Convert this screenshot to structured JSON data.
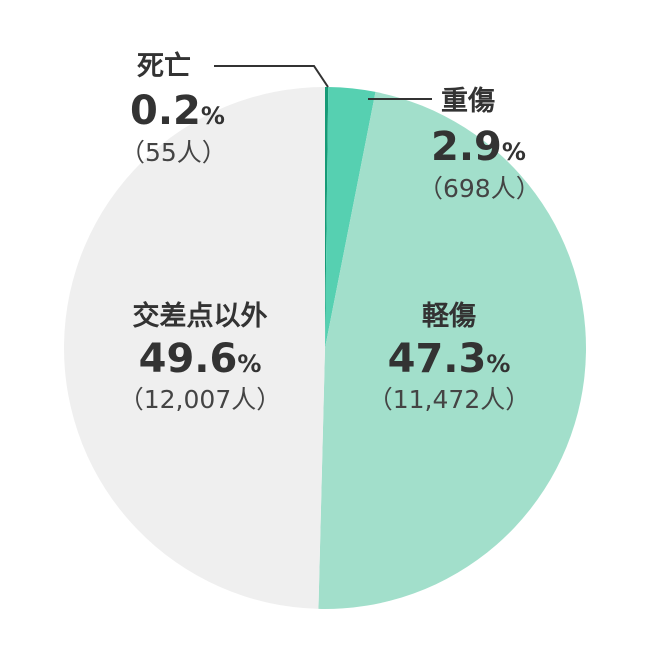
{
  "chart_data": {
    "type": "pie",
    "start_angle_deg": 0,
    "direction": "clockwise",
    "slices": [
      {
        "label": "死亡",
        "value": 0.2,
        "percent_label": "0.2",
        "count_label": "（55人）",
        "color": "#169a76"
      },
      {
        "label": "重傷",
        "value": 2.9,
        "percent_label": "2.9",
        "count_label": "（698人）",
        "color": "#56d0b1"
      },
      {
        "label": "軽傷",
        "value": 47.3,
        "percent_label": "47.3",
        "count_label": "（11,472人）",
        "color": "#a2dfcb"
      },
      {
        "label": "交差点以外",
        "value": 49.6,
        "percent_label": "49.6",
        "count_label": "（12,007人）",
        "color": "#efefef"
      }
    ],
    "percent_sign": "%",
    "colors": {
      "text": "#333333",
      "leader_line": "#333333",
      "background": "#ffffff"
    }
  }
}
